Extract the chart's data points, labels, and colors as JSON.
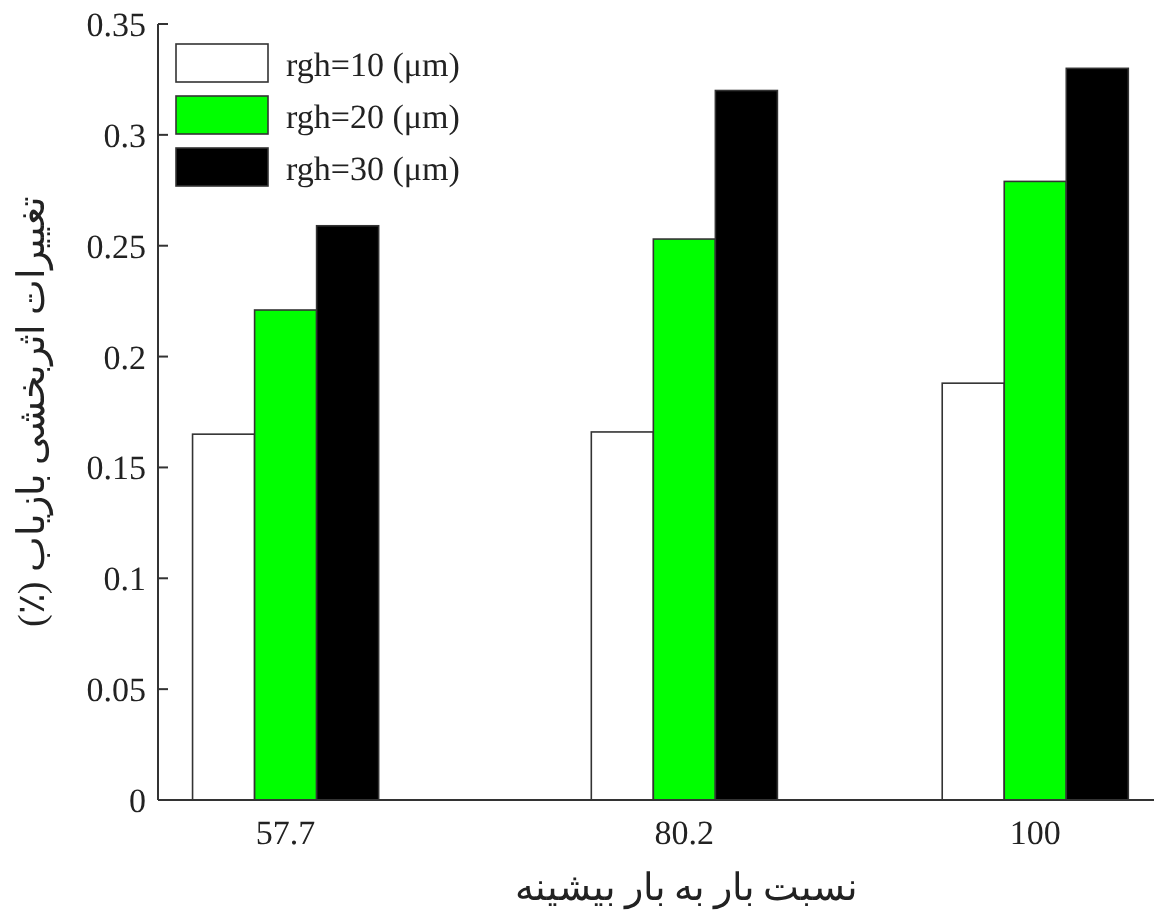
{
  "chart_data": {
    "type": "bar",
    "x": [
      57.7,
      80.2,
      100
    ],
    "xlim": [
      50.5,
      106.7
    ],
    "xticks": [
      57.7,
      80.2,
      100
    ],
    "ylim": [
      0,
      0.35
    ],
    "yticks": [
      0,
      0.05,
      0.1,
      0.15,
      0.2,
      0.25,
      0.3,
      0.35
    ],
    "xlabel": "نسبت بار به بار بیشینه",
    "ylabel": "تغییرات اثربخشی بازیاب (٪)",
    "legend": "top left",
    "grid": false,
    "series": [
      {
        "name": "rgh=10 (μm)",
        "color": "#ffffff",
        "values": [
          0.165,
          0.166,
          0.188
        ]
      },
      {
        "name": "rgh=20 (μm)",
        "color": "#00ff00",
        "values": [
          0.221,
          0.253,
          0.279
        ]
      },
      {
        "name": "rgh=30 (μm)",
        "color": "#000000",
        "values": [
          0.259,
          0.32,
          0.33
        ]
      }
    ]
  }
}
